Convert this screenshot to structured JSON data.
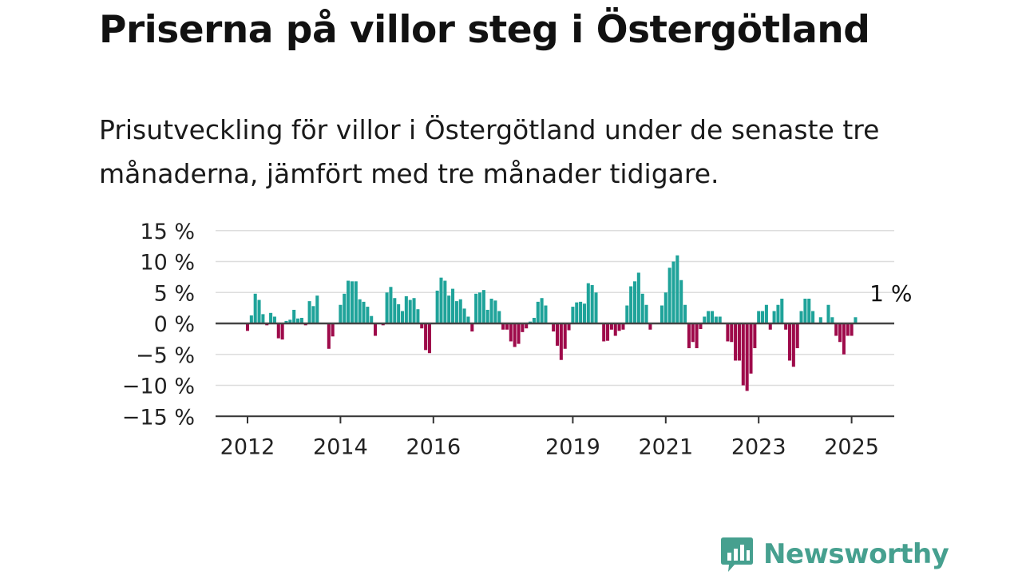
{
  "header": {
    "title": "Priserna på villor steg i Östergötland",
    "subtitle": "Prisutveckling för villor i Östergötland under de senaste tre månaderna, jämfört med tre månader tidigare."
  },
  "brand": {
    "name": "Newsworthy",
    "icon": "newsworthy-logo-icon",
    "color": "#46a08f"
  },
  "chart_data": {
    "type": "bar",
    "title": "",
    "xlabel": "",
    "ylabel": "",
    "ylim": [
      -15,
      15
    ],
    "yticks": [
      15,
      10,
      5,
      0,
      -5,
      -10,
      -15
    ],
    "ytick_labels": [
      "15 %",
      "10 %",
      "5 %",
      "0 %",
      "−5 %",
      "−10 %",
      "−15 %"
    ],
    "xticks": [
      2012,
      2014,
      2016,
      2019,
      2021,
      2023,
      2025
    ],
    "xtick_labels": [
      "2012",
      "2014",
      "2016",
      "2019",
      "2021",
      "2023",
      "2025"
    ],
    "x_start": "2012-01",
    "x_end": "2025-06",
    "grid": true,
    "colors": {
      "positive": "#1fa39a",
      "negative": "#9e0a4a",
      "zero_line": "#444444",
      "axis": "#333333",
      "grid": "#dddddd"
    },
    "annotation": {
      "text": "1 %",
      "month": "2025-06"
    },
    "series": [
      {
        "values": [
          -1.2,
          1.3,
          4.8,
          3.8,
          1.5,
          -0.3,
          1.7,
          1.1,
          -2.4,
          -2.6,
          0.4,
          0.6,
          2.2,
          0.8,
          0.9,
          -0.3,
          3.6,
          2.8,
          4.5,
          0.0,
          0.0,
          -4.1,
          -2.1,
          0.0,
          3.0,
          4.8,
          6.9,
          6.8,
          6.8,
          3.9,
          3.5,
          2.7,
          1.2,
          -2.0,
          0.1,
          -0.3,
          5.0,
          5.9,
          4.1,
          3.1,
          2.0,
          4.4,
          3.8,
          4.1,
          2.3,
          -0.8,
          -4.3,
          -4.8,
          0.0,
          5.3,
          7.4,
          6.9,
          4.5,
          5.6,
          3.6,
          3.9,
          2.4,
          1.1,
          -1.3,
          4.8,
          5.0,
          5.4,
          2.2,
          4.0,
          3.7,
          2.0,
          -1.0,
          -1.0,
          -2.9,
          -3.8,
          -3.3,
          -1.4,
          -0.8,
          0.3,
          0.9,
          3.5,
          4.1,
          2.9,
          0.0,
          -1.3,
          -3.6,
          -5.9,
          -4.1,
          -1.1,
          2.7,
          3.4,
          3.5,
          3.2,
          6.5,
          6.2,
          5.0,
          0.0,
          -2.9,
          -2.8,
          -1.0,
          -2.0,
          -1.2,
          -1.0,
          2.9,
          6.0,
          6.8,
          8.2,
          4.8,
          3.0,
          -1.0,
          0.0,
          0.0,
          2.9,
          5.0,
          9.0,
          10.0,
          11.0,
          7.0,
          3.0,
          -4.0,
          -3.0,
          -4.0,
          -0.9,
          1.1,
          2.0,
          2.0,
          1.1,
          1.1,
          0.0,
          -2.9,
          -3.0,
          -6.0,
          -6.0,
          -10.0,
          -10.9,
          -8.1,
          -4.0,
          2.0,
          2.0,
          3.0,
          -1.0,
          2.0,
          3.0,
          4.0,
          -1.0,
          -6.0,
          -7.0,
          -4.0,
          2.0,
          4.0,
          4.0,
          2.0,
          0.0,
          1.0,
          0.0,
          3.0,
          1.0,
          -2.0,
          -3.0,
          -5.0,
          -2.0,
          -2.0,
          1.0
        ]
      }
    ]
  }
}
